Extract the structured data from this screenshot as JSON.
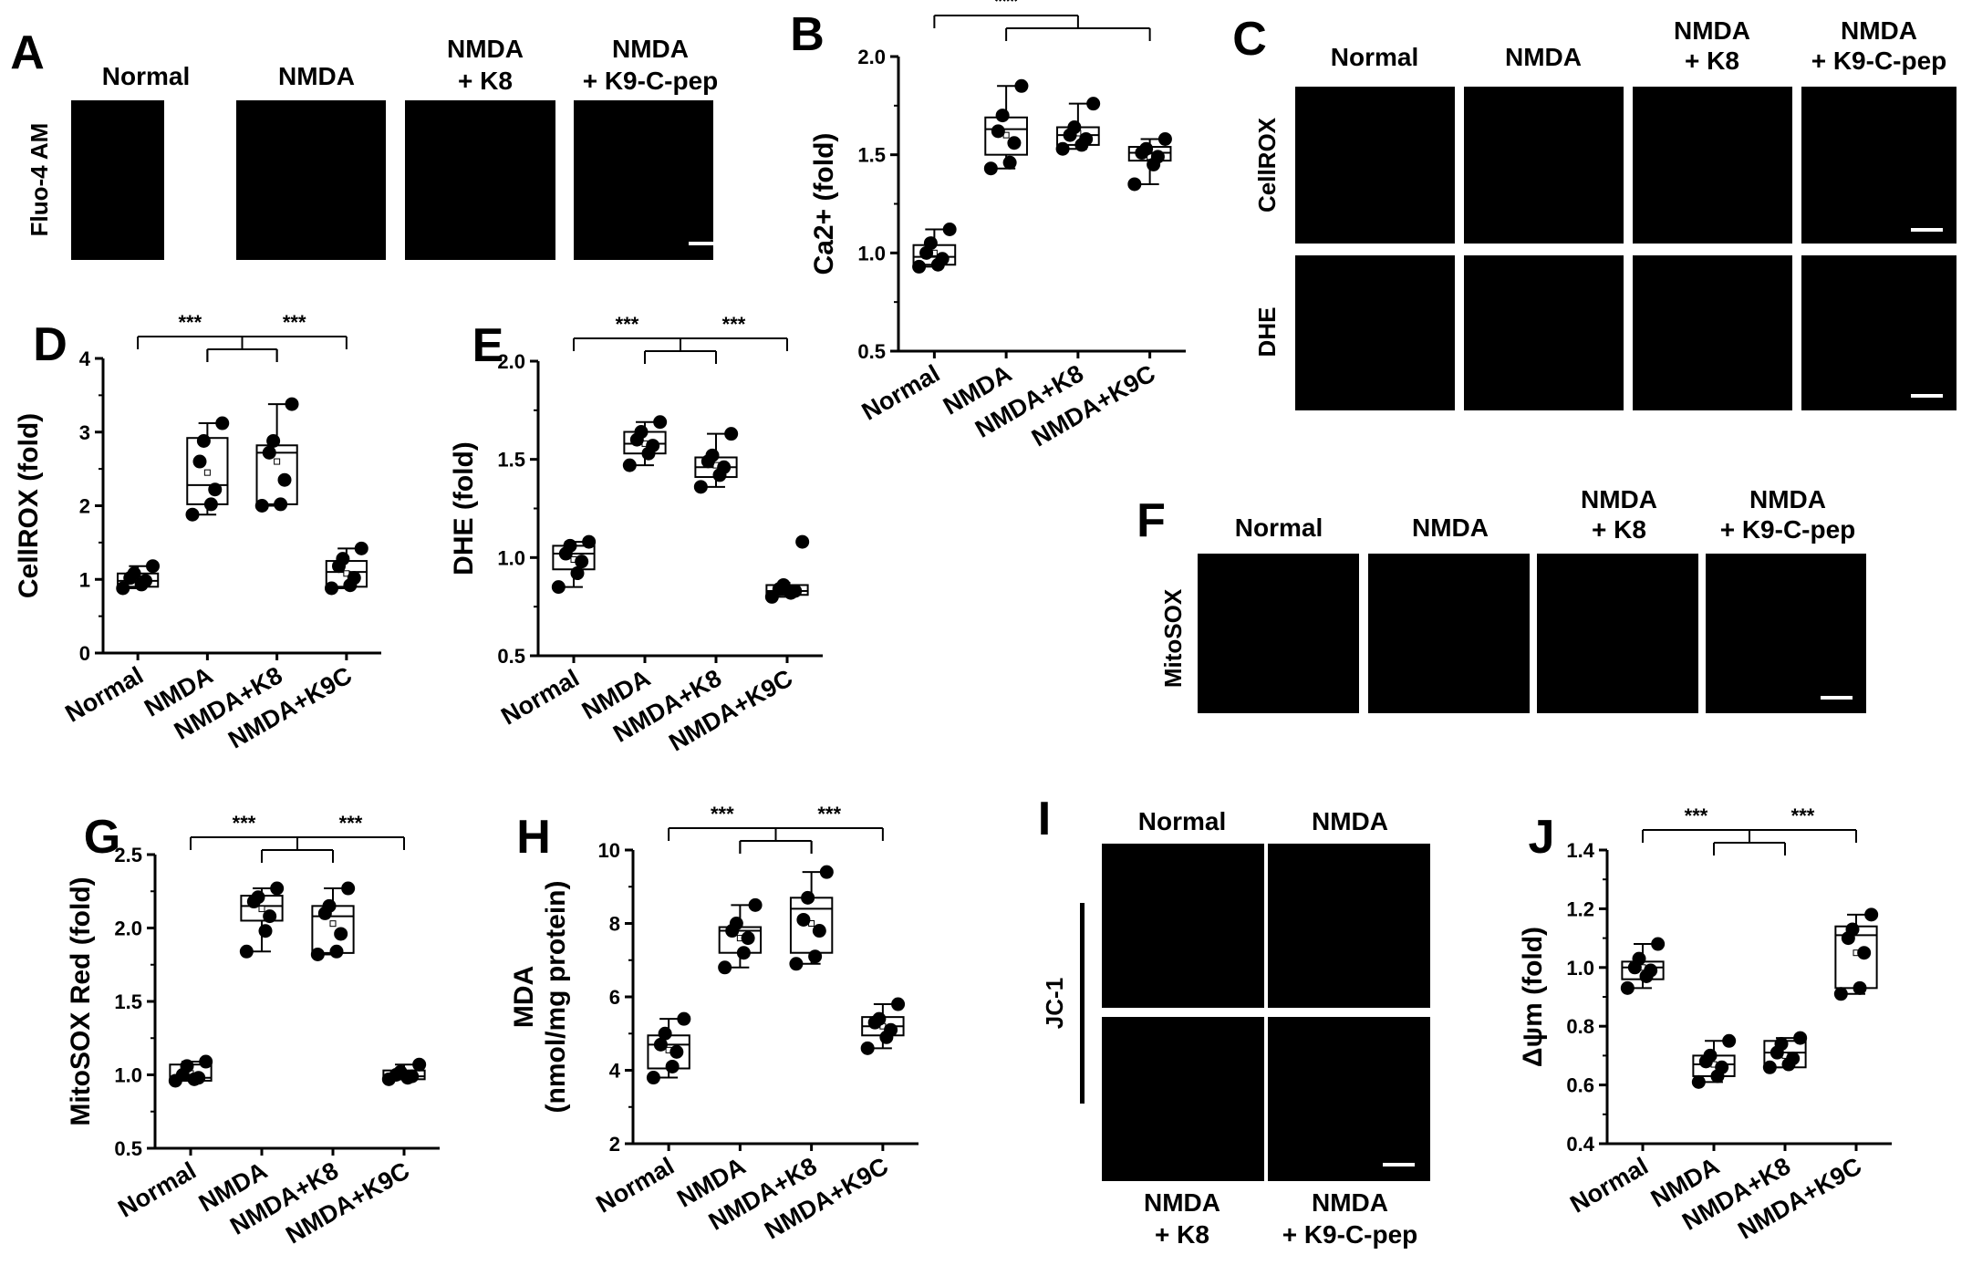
{
  "colors": {
    "fluo_green": "#2fd12f",
    "dhe_red": "#e81010",
    "jc1_orange": "#c8742a",
    "background_dark": "#000000"
  },
  "panel_A": {
    "letter": "A",
    "row_label": "Fluo-4 AM",
    "columns": [
      [
        "Normal"
      ],
      [
        "NMDA"
      ],
      [
        "NMDA",
        "+ K8"
      ],
      [
        "NMDA",
        "+ K9-C-pep"
      ]
    ]
  },
  "panel_C": {
    "letter": "C",
    "row_labels": [
      "CellROX",
      "DHE"
    ],
    "columns": [
      [
        "Normal"
      ],
      [
        "NMDA"
      ],
      [
        "NMDA",
        "+ K8"
      ],
      [
        "NMDA",
        "+ K9-C-pep"
      ]
    ]
  },
  "panel_F": {
    "letter": "F",
    "row_label": "MitoSOX",
    "columns": [
      [
        "Normal"
      ],
      [
        "NMDA"
      ],
      [
        "NMDA",
        "+ K8"
      ],
      [
        "NMDA",
        "+ K9-C-pep"
      ]
    ]
  },
  "panel_I": {
    "letter": "I",
    "row_label": "JC-1",
    "top_titles": [
      "Normal",
      "NMDA"
    ],
    "bottom_titles": [
      [
        "NMDA",
        "+ K8"
      ],
      [
        "NMDA",
        "+ K9-C-pep"
      ]
    ]
  },
  "chart_data": [
    {
      "id": "B",
      "letter": "B",
      "type": "box",
      "ylabel": "Ca2+ (fold)",
      "ylim": [
        0.5,
        2.0
      ],
      "yticks": [
        "0.5",
        "1.0",
        "1.5",
        "2.0"
      ],
      "categories": [
        "Normal",
        "NMDA",
        "NMDA+K8",
        "NMDA+K9C"
      ],
      "series": [
        {
          "points": [
            0.93,
            0.94,
            0.97,
            1.0,
            1.05,
            1.12
          ],
          "q1": 0.94,
          "median": 0.98,
          "q3": 1.04,
          "whisker_low": 0.93,
          "whisker_high": 1.12,
          "mean": 1.0
        },
        {
          "points": [
            1.43,
            1.46,
            1.56,
            1.62,
            1.7,
            1.85
          ],
          "q1": 1.5,
          "median": 1.63,
          "q3": 1.69,
          "whisker_low": 1.43,
          "whisker_high": 1.85,
          "mean": 1.6
        },
        {
          "points": [
            1.53,
            1.55,
            1.58,
            1.6,
            1.64,
            1.76
          ],
          "q1": 1.55,
          "median": 1.6,
          "q3": 1.64,
          "whisker_low": 1.53,
          "whisker_high": 1.76,
          "mean": 1.61
        },
        {
          "points": [
            1.35,
            1.45,
            1.49,
            1.51,
            1.53,
            1.58
          ],
          "q1": 1.47,
          "median": 1.51,
          "q3": 1.54,
          "whisker_low": 1.35,
          "whisker_high": 1.58,
          "mean": 1.49
        }
      ],
      "significance": [
        {
          "from": [
            0
          ],
          "to": [
            1,
            2,
            3
          ],
          "label": "***"
        }
      ]
    },
    {
      "id": "D",
      "letter": "D",
      "type": "box",
      "ylabel": "CellROX (fold)",
      "ylim": [
        0,
        4
      ],
      "yticks": [
        "0",
        "1",
        "2",
        "3",
        "4"
      ],
      "categories": [
        "Normal",
        "NMDA",
        "NMDA+K8",
        "NMDA+K9C"
      ],
      "series": [
        {
          "points": [
            0.88,
            0.93,
            0.98,
            1.02,
            1.08,
            1.18
          ],
          "q1": 0.9,
          "median": 0.98,
          "q3": 1.08,
          "whisker_low": 0.88,
          "whisker_high": 1.18,
          "mean": 1.01
        },
        {
          "points": [
            1.88,
            2.02,
            2.22,
            2.6,
            2.88,
            3.12
          ],
          "q1": 2.02,
          "median": 2.28,
          "q3": 2.92,
          "whisker_low": 1.88,
          "whisker_high": 3.12,
          "mean": 2.45
        },
        {
          "points": [
            2.0,
            2.02,
            2.35,
            2.72,
            2.88,
            3.38
          ],
          "q1": 2.02,
          "median": 2.72,
          "q3": 2.82,
          "whisker_low": 2.0,
          "whisker_high": 3.38,
          "mean": 2.6
        },
        {
          "points": [
            0.88,
            0.92,
            1.02,
            1.18,
            1.28,
            1.42
          ],
          "q1": 0.9,
          "median": 1.1,
          "q3": 1.25,
          "whisker_low": 0.88,
          "whisker_high": 1.42,
          "mean": 1.08
        }
      ],
      "significance": [
        {
          "from": [
            0
          ],
          "to": [
            1,
            2
          ],
          "label": "***"
        },
        {
          "from": [
            1,
            2
          ],
          "to": [
            3
          ],
          "label": "***"
        }
      ]
    },
    {
      "id": "E",
      "letter": "E",
      "type": "box",
      "ylabel": "DHE (fold)",
      "ylim": [
        0.5,
        2.0
      ],
      "yticks": [
        "0.5",
        "1.0",
        "1.5",
        "2.0"
      ],
      "categories": [
        "Normal",
        "NMDA",
        "NMDA+K8",
        "NMDA+K9C"
      ],
      "series": [
        {
          "points": [
            0.85,
            0.92,
            0.98,
            1.02,
            1.06,
            1.08
          ],
          "q1": 0.94,
          "median": 1.02,
          "q3": 1.06,
          "whisker_low": 0.85,
          "whisker_high": 1.08,
          "mean": 0.99
        },
        {
          "points": [
            1.47,
            1.53,
            1.57,
            1.6,
            1.64,
            1.69
          ],
          "q1": 1.53,
          "median": 1.58,
          "q3": 1.64,
          "whisker_low": 1.47,
          "whisker_high": 1.69,
          "mean": 1.58
        },
        {
          "points": [
            1.36,
            1.42,
            1.46,
            1.49,
            1.52,
            1.63
          ],
          "q1": 1.41,
          "median": 1.46,
          "q3": 1.51,
          "whisker_low": 1.36,
          "whisker_high": 1.63,
          "mean": 1.47
        },
        {
          "points": [
            0.8,
            0.82,
            0.83,
            0.84,
            0.86,
            1.08
          ],
          "q1": 0.81,
          "median": 0.83,
          "q3": 0.86,
          "whisker_low": 0.8,
          "whisker_high": 0.86,
          "mean": 0.86
        }
      ],
      "significance": [
        {
          "from": [
            0
          ],
          "to": [
            1,
            2
          ],
          "label": "***"
        },
        {
          "from": [
            1,
            2
          ],
          "to": [
            3
          ],
          "label": "***"
        }
      ]
    },
    {
      "id": "G",
      "letter": "G",
      "type": "box",
      "ylabel": "MitoSOX Red (fold)",
      "ylim": [
        0.5,
        2.5
      ],
      "yticks": [
        "0.5",
        "1.0",
        "1.5",
        "2.0",
        "2.5"
      ],
      "categories": [
        "Normal",
        "NMDA",
        "NMDA+K8",
        "NMDA+K9C"
      ],
      "series": [
        {
          "points": [
            0.96,
            0.97,
            0.98,
            1.0,
            1.06,
            1.09
          ],
          "q1": 0.96,
          "median": 0.98,
          "q3": 1.07,
          "whisker_low": 0.96,
          "whisker_high": 1.09,
          "mean": 1.01
        },
        {
          "points": [
            1.84,
            1.98,
            2.08,
            2.18,
            2.21,
            2.27
          ],
          "q1": 2.05,
          "median": 2.15,
          "q3": 2.22,
          "whisker_low": 1.84,
          "whisker_high": 2.27,
          "mean": 2.13
        },
        {
          "points": [
            1.82,
            1.84,
            1.96,
            2.1,
            2.15,
            2.27
          ],
          "q1": 1.83,
          "median": 2.08,
          "q3": 2.15,
          "whisker_low": 1.82,
          "whisker_high": 2.27,
          "mean": 2.03
        },
        {
          "points": [
            0.97,
            0.98,
            0.99,
            1.0,
            1.02,
            1.07
          ],
          "q1": 0.97,
          "median": 0.99,
          "q3": 1.03,
          "whisker_low": 0.97,
          "whisker_high": 1.07,
          "mean": 1.0
        }
      ],
      "significance": [
        {
          "from": [
            0
          ],
          "to": [
            1,
            2
          ],
          "label": "***"
        },
        {
          "from": [
            1,
            2
          ],
          "to": [
            3
          ],
          "label": "***"
        }
      ]
    },
    {
      "id": "H",
      "letter": "H",
      "type": "box",
      "ylabel": [
        "MDA",
        "(nmol/mg protein)"
      ],
      "ylim": [
        2,
        10
      ],
      "yticks": [
        "2",
        "4",
        "6",
        "8",
        "10"
      ],
      "categories": [
        "Normal",
        "NMDA",
        "NMDA+K8",
        "NMDA+K9C"
      ],
      "series": [
        {
          "points": [
            3.8,
            4.1,
            4.5,
            4.7,
            5.0,
            5.4
          ],
          "q1": 4.05,
          "median": 4.7,
          "q3": 4.95,
          "whisker_low": 3.8,
          "whisker_high": 5.4,
          "mean": 4.55
        },
        {
          "points": [
            6.8,
            7.2,
            7.6,
            7.8,
            8.0,
            8.5
          ],
          "q1": 7.2,
          "median": 7.8,
          "q3": 7.9,
          "whisker_low": 6.8,
          "whisker_high": 8.5,
          "mean": 7.6
        },
        {
          "points": [
            6.9,
            7.1,
            7.8,
            8.1,
            8.7,
            9.4
          ],
          "q1": 7.2,
          "median": 8.4,
          "q3": 8.7,
          "whisker_low": 6.9,
          "whisker_high": 9.4,
          "mean": 8.0
        },
        {
          "points": [
            4.6,
            4.9,
            5.1,
            5.3,
            5.4,
            5.8
          ],
          "q1": 4.95,
          "median": 5.2,
          "q3": 5.45,
          "whisker_low": 4.6,
          "whisker_high": 5.8,
          "mean": 5.2
        }
      ],
      "significance": [
        {
          "from": [
            0
          ],
          "to": [
            1,
            2
          ],
          "label": "***"
        },
        {
          "from": [
            1,
            2
          ],
          "to": [
            3
          ],
          "label": "***"
        }
      ]
    },
    {
      "id": "J",
      "letter": "J",
      "type": "box",
      "ylabel": "Δψm (fold)",
      "ylim": [
        0.4,
        1.4
      ],
      "yticks": [
        "0.4",
        "0.6",
        "0.8",
        "1.0",
        "1.2",
        "1.4"
      ],
      "categories": [
        "Normal",
        "NMDA",
        "NMDA+K8",
        "NMDA+K9C"
      ],
      "series": [
        {
          "points": [
            0.93,
            0.97,
            0.99,
            1.0,
            1.03,
            1.08
          ],
          "q1": 0.96,
          "median": 1.0,
          "q3": 1.02,
          "whisker_low": 0.93,
          "whisker_high": 1.08,
          "mean": 1.0
        },
        {
          "points": [
            0.61,
            0.63,
            0.66,
            0.68,
            0.7,
            0.75
          ],
          "q1": 0.63,
          "median": 0.67,
          "q3": 0.7,
          "whisker_low": 0.61,
          "whisker_high": 0.75,
          "mean": 0.67
        },
        {
          "points": [
            0.66,
            0.67,
            0.69,
            0.71,
            0.74,
            0.76
          ],
          "q1": 0.66,
          "median": 0.71,
          "q3": 0.75,
          "whisker_low": 0.66,
          "whisker_high": 0.76,
          "mean": 0.7
        },
        {
          "points": [
            0.91,
            0.93,
            1.05,
            1.1,
            1.13,
            1.18
          ],
          "q1": 0.93,
          "median": 1.11,
          "q3": 1.14,
          "whisker_low": 0.91,
          "whisker_high": 1.18,
          "mean": 1.05
        }
      ],
      "significance": [
        {
          "from": [
            0
          ],
          "to": [
            1,
            2
          ],
          "label": "***"
        },
        {
          "from": [
            1,
            2
          ],
          "to": [
            3
          ],
          "label": "***"
        }
      ]
    }
  ]
}
